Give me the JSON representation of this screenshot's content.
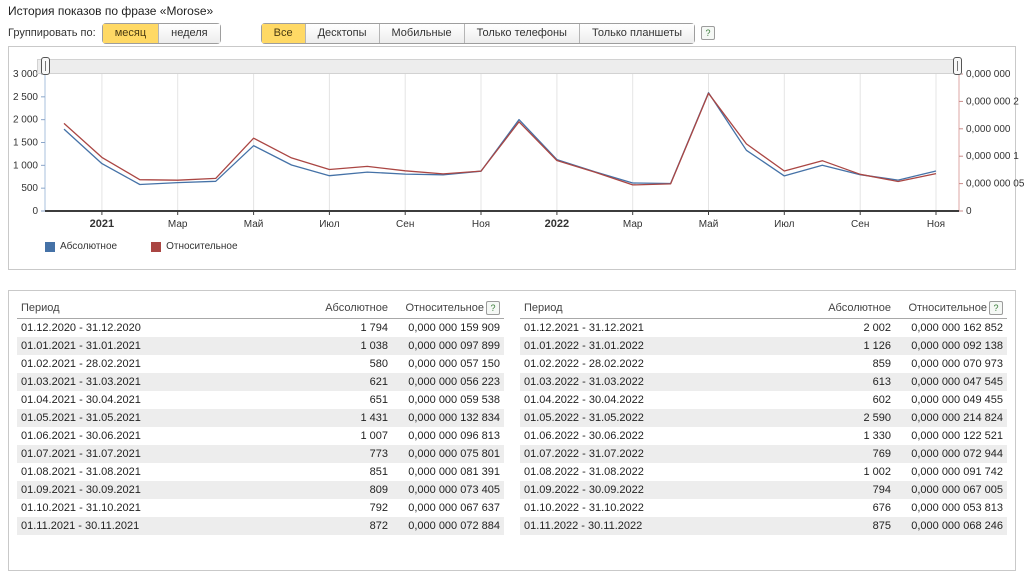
{
  "page": {
    "title": "История показов по фразе «Morose»"
  },
  "controls": {
    "group_label": "Группировать по:",
    "group_options": [
      {
        "label": "месяц",
        "active": true
      },
      {
        "label": "неделя",
        "active": false
      }
    ],
    "device_options": [
      {
        "label": "Все",
        "active": true
      },
      {
        "label": "Десктопы",
        "active": false
      },
      {
        "label": "Мобильные",
        "active": false
      },
      {
        "label": "Только телефоны",
        "active": false
      },
      {
        "label": "Только планшеты",
        "active": false
      }
    ],
    "help_icon": "?"
  },
  "chart_data": {
    "type": "line",
    "title": "История показов по фразе «Morose»",
    "x_months": [
      "12.2020",
      "01.2021",
      "02.2021",
      "03.2021",
      "04.2021",
      "05.2021",
      "06.2021",
      "07.2021",
      "08.2021",
      "09.2021",
      "10.2021",
      "11.2021",
      "12.2021",
      "01.2022",
      "02.2022",
      "03.2022",
      "04.2022",
      "05.2022",
      "06.2022",
      "07.2022",
      "08.2022",
      "09.2022",
      "10.2022",
      "11.2022"
    ],
    "x_tick_labels": [
      {
        "i": 1,
        "label": "2021",
        "bold": true
      },
      {
        "i": 3,
        "label": "Мар",
        "bold": false
      },
      {
        "i": 5,
        "label": "Май",
        "bold": false
      },
      {
        "i": 7,
        "label": "Июл",
        "bold": false
      },
      {
        "i": 9,
        "label": "Сен",
        "bold": false
      },
      {
        "i": 11,
        "label": "Ноя",
        "bold": false
      },
      {
        "i": 13,
        "label": "2022",
        "bold": true
      },
      {
        "i": 15,
        "label": "Мар",
        "bold": false
      },
      {
        "i": 17,
        "label": "Май",
        "bold": false
      },
      {
        "i": 19,
        "label": "Июл",
        "bold": false
      },
      {
        "i": 21,
        "label": "Сен",
        "bold": false
      },
      {
        "i": 23,
        "label": "Ноя",
        "bold": false
      }
    ],
    "left_axis": {
      "min": 0,
      "max": 3000,
      "tick_values": [
        0,
        500,
        1000,
        1500,
        2000,
        2500,
        3000
      ],
      "tick_labels": [
        "0",
        "500",
        "1 000",
        "1 500",
        "2 000",
        "2 500",
        "3 000"
      ]
    },
    "right_axis": {
      "min": 0,
      "max": 2.5,
      "unit": "1e-7",
      "tick_values": [
        0,
        0.5,
        1,
        1.5,
        2,
        2.5
      ],
      "tick_labels": [
        "0",
        "0,000 000 05",
        "0,000 000 1",
        "0,000 000",
        "0,000 000 2",
        "0,000 000"
      ]
    },
    "series": [
      {
        "name": "Абсолютное",
        "axis": "left",
        "color": "#4572a7",
        "values": [
          1794,
          1038,
          580,
          621,
          651,
          1431,
          1007,
          773,
          851,
          809,
          792,
          872,
          2002,
          1126,
          859,
          613,
          602,
          2590,
          1330,
          769,
          1002,
          794,
          676,
          875
        ]
      },
      {
        "name": "Относительное",
        "axis": "right",
        "color": "#aa4643",
        "values": [
          1.59909,
          0.97899,
          0.5715,
          0.56223,
          0.59538,
          1.32834,
          0.96813,
          0.75801,
          0.81391,
          0.73405,
          0.67637,
          0.72884,
          1.62852,
          0.92138,
          0.70973,
          0.47545,
          0.49455,
          2.14824,
          1.22521,
          0.72944,
          0.91742,
          0.67005,
          0.53813,
          0.68246
        ]
      }
    ],
    "legend_position": "bottom-left",
    "grid": "vertical"
  },
  "legend": [
    {
      "label": "Абсолютное",
      "color": "#4572a7"
    },
    {
      "label": "Относительное",
      "color": "#aa4643"
    }
  ],
  "tables": {
    "headers": {
      "period": "Период",
      "absolute": "Абсолютное",
      "relative": "Относительное",
      "help_icon": "?"
    },
    "left_rows": [
      {
        "period": "01.12.2020 - 31.12.2020",
        "absolute": "1 794",
        "relative": "0,000 000 159 909"
      },
      {
        "period": "01.01.2021 - 31.01.2021",
        "absolute": "1 038",
        "relative": "0,000 000 097 899"
      },
      {
        "period": "01.02.2021 - 28.02.2021",
        "absolute": "580",
        "relative": "0,000 000 057 150"
      },
      {
        "period": "01.03.2021 - 31.03.2021",
        "absolute": "621",
        "relative": "0,000 000 056 223"
      },
      {
        "period": "01.04.2021 - 30.04.2021",
        "absolute": "651",
        "relative": "0,000 000 059 538"
      },
      {
        "period": "01.05.2021 - 31.05.2021",
        "absolute": "1 431",
        "relative": "0,000 000 132 834"
      },
      {
        "period": "01.06.2021 - 30.06.2021",
        "absolute": "1 007",
        "relative": "0,000 000 096 813"
      },
      {
        "period": "01.07.2021 - 31.07.2021",
        "absolute": "773",
        "relative": "0,000 000 075 801"
      },
      {
        "period": "01.08.2021 - 31.08.2021",
        "absolute": "851",
        "relative": "0,000 000 081 391"
      },
      {
        "period": "01.09.2021 - 30.09.2021",
        "absolute": "809",
        "relative": "0,000 000 073 405"
      },
      {
        "period": "01.10.2021 - 31.10.2021",
        "absolute": "792",
        "relative": "0,000 000 067 637"
      },
      {
        "period": "01.11.2021 - 30.11.2021",
        "absolute": "872",
        "relative": "0,000 000 072 884"
      }
    ],
    "right_rows": [
      {
        "period": "01.12.2021 - 31.12.2021",
        "absolute": "2 002",
        "relative": "0,000 000 162 852"
      },
      {
        "period": "01.01.2022 - 31.01.2022",
        "absolute": "1 126",
        "relative": "0,000 000 092 138"
      },
      {
        "period": "01.02.2022 - 28.02.2022",
        "absolute": "859",
        "relative": "0,000 000 070 973"
      },
      {
        "period": "01.03.2022 - 31.03.2022",
        "absolute": "613",
        "relative": "0,000 000 047 545"
      },
      {
        "period": "01.04.2022 - 30.04.2022",
        "absolute": "602",
        "relative": "0,000 000 049 455"
      },
      {
        "period": "01.05.2022 - 31.05.2022",
        "absolute": "2 590",
        "relative": "0,000 000 214 824"
      },
      {
        "period": "01.06.2022 - 30.06.2022",
        "absolute": "1 330",
        "relative": "0,000 000 122 521"
      },
      {
        "period": "01.07.2022 - 31.07.2022",
        "absolute": "769",
        "relative": "0,000 000 072 944"
      },
      {
        "period": "01.08.2022 - 31.08.2022",
        "absolute": "1 002",
        "relative": "0,000 000 091 742"
      },
      {
        "period": "01.09.2022 - 30.09.2022",
        "absolute": "794",
        "relative": "0,000 000 067 005"
      },
      {
        "period": "01.10.2022 - 31.10.2022",
        "absolute": "676",
        "relative": "0,000 000 053 813"
      },
      {
        "period": "01.11.2022 - 30.11.2022",
        "absolute": "875",
        "relative": "0,000 000 068 246"
      }
    ]
  },
  "colors": {
    "accent_yellow": "#ffd965",
    "series_absolute": "#4572a7",
    "series_relative": "#aa4643",
    "axis_left_line": "#a9c0dd",
    "axis_right_line": "#dca7a5",
    "grid_line": "#e4e4e4",
    "zebra_row": "#ededed",
    "panel_border": "#c9c9c9"
  }
}
